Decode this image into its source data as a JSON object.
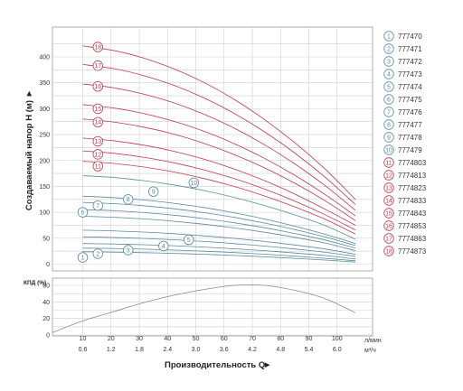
{
  "chart_data": [
    {
      "type": "line",
      "ylabel": "Создаваемый напор H (м)",
      "ylabel_arrow": "►",
      "ylim": [
        0,
        450
      ],
      "yticks": [
        "0",
        "50",
        "100",
        "150",
        "200",
        "250",
        "300",
        "350",
        "400"
      ],
      "x": [
        0,
        0.6,
        1.2,
        1.8,
        2.4,
        3.0,
        3.6,
        4.2,
        4.8,
        5.4,
        6.0
      ],
      "grid": true,
      "series": [
        {
          "name": "777470",
          "marker": "1",
          "group": "blue",
          "values": [
            24,
            23.8,
            23.2,
            22.2,
            20.8,
            19,
            16.8,
            14.2,
            11.2,
            7.8,
            4
          ]
        },
        {
          "name": "777471",
          "marker": "2",
          "group": "blue",
          "values": [
            31,
            30.8,
            30.1,
            28.9,
            27.2,
            25,
            22.3,
            19.1,
            15.4,
            11.2,
            6.5
          ]
        },
        {
          "name": "777472",
          "marker": "3",
          "group": "blue",
          "values": [
            40,
            39.7,
            38.9,
            37.5,
            35.5,
            32.9,
            29.7,
            25.9,
            21.5,
            16.5,
            10
          ]
        },
        {
          "name": "777473",
          "marker": "4",
          "group": "blue",
          "values": [
            53,
            52.6,
            51.5,
            49.6,
            47,
            43.7,
            39.6,
            34.8,
            29.2,
            22.9,
            15
          ]
        },
        {
          "name": "777474",
          "marker": "5",
          "group": "blue",
          "values": [
            66,
            65.6,
            64.2,
            61.9,
            58.7,
            54.6,
            49.6,
            43.7,
            36.9,
            29.2,
            19
          ]
        },
        {
          "name": "777475",
          "marker": "6",
          "group": "blue",
          "values": [
            93,
            92.4,
            90.5,
            87.3,
            82.8,
            77,
            69.9,
            61.5,
            51.8,
            40.8,
            26
          ]
        },
        {
          "name": "777476",
          "marker": "7",
          "group": "blue",
          "values": [
            106,
            105.3,
            103.2,
            99.6,
            94.5,
            87.9,
            79.8,
            70.2,
            59.1,
            46.5,
            31
          ]
        },
        {
          "name": "777477",
          "marker": "8",
          "group": "blue",
          "values": [
            120,
            119.2,
            116.8,
            112.7,
            106.9,
            99.4,
            90.2,
            79.3,
            66.7,
            52.4,
            36
          ]
        },
        {
          "name": "777478",
          "marker": "9",
          "group": "blue",
          "values": [
            132,
            131.1,
            128.4,
            123.9,
            117.5,
            109.2,
            99.1,
            87.1,
            73.2,
            57.5,
            40
          ]
        },
        {
          "name": "777479",
          "marker": "10",
          "group": "blue",
          "values": [
            172,
            170.8,
            167.3,
            161.3,
            152.9,
            142.1,
            128.8,
            113.1,
            95,
            74.5,
            48
          ]
        },
        {
          "name": "7774803",
          "marker": "11",
          "group": "red",
          "values": [
            200,
            198.6,
            194.5,
            187.6,
            177.9,
            165.3,
            149.9,
            131.6,
            110.5,
            86.6,
            58
          ]
        },
        {
          "name": "7774813",
          "marker": "12",
          "group": "red",
          "values": [
            220,
            218.5,
            214,
            206.4,
            195.7,
            181.9,
            165,
            144.9,
            121.7,
            95.4,
            66
          ]
        },
        {
          "name": "7774823",
          "marker": "13",
          "group": "red",
          "values": [
            245,
            243.3,
            238.3,
            229.8,
            217.9,
            202.5,
            183.6,
            161.2,
            135.3,
            105.9,
            75
          ]
        },
        {
          "name": "7774833",
          "marker": "14",
          "group": "red",
          "values": [
            282,
            280.1,
            274.3,
            264.6,
            250.9,
            233.2,
            211.5,
            185.8,
            156.1,
            122.4,
            84
          ]
        },
        {
          "name": "7774843",
          "marker": "15",
          "group": "red",
          "values": [
            310,
            307.9,
            301.6,
            290.9,
            275.8,
            256.4,
            232.5,
            204.2,
            171.5,
            134.4,
            93
          ]
        },
        {
          "name": "7774853",
          "marker": "16",
          "group": "red",
          "values": [
            350,
            347.6,
            340.5,
            328.4,
            311.4,
            289.4,
            262.4,
            230.4,
            193.4,
            151.5,
            104
          ]
        },
        {
          "name": "7774863",
          "marker": "17",
          "group": "red",
          "values": [
            388,
            385.4,
            377.5,
            364.1,
            345.2,
            320.8,
            290.9,
            255.4,
            214.4,
            167.9,
            115
          ]
        },
        {
          "name": "7774873",
          "marker": "18",
          "group": "red",
          "values": [
            424,
            421.1,
            412.5,
            397.9,
            377.2,
            350.6,
            317.9,
            279.1,
            234.3,
            183.5,
            125
          ]
        }
      ]
    },
    {
      "type": "line",
      "ylabel": "КПД (%)",
      "ylim": [
        0,
        70
      ],
      "yticks": [
        "0",
        "20",
        "40",
        "60"
      ],
      "x": [
        0,
        0.6,
        1.2,
        1.8,
        2.4,
        3.0,
        3.6,
        4.2,
        4.8,
        5.4,
        6.0
      ],
      "series": [
        {
          "values": [
            3,
            17,
            28,
            39,
            48,
            55,
            60,
            60,
            54,
            44,
            27
          ]
        }
      ]
    }
  ],
  "x_axis": {
    "title": "Производительность Q",
    "title_arrow": "►",
    "flow_lpm_ticks": [
      "10",
      "20",
      "30",
      "40",
      "50",
      "60",
      "70",
      "80",
      "90",
      "100"
    ],
    "flow_lpm_unit": "л/мин",
    "flow_m3h_ticks": [
      "0.6",
      "1.2",
      "1.8",
      "2.4",
      "3.0",
      "3.6",
      "4.2",
      "4.8",
      "5.4",
      "6.0"
    ],
    "flow_m3h_unit": "м³/ч"
  },
  "colors": {
    "blue_series": "#5a8a9c",
    "red_series": "#c0394a",
    "efficiency_line": "#8a8a8a",
    "grid": "#cfcfcf",
    "plot_border": "#9a9a9a"
  }
}
